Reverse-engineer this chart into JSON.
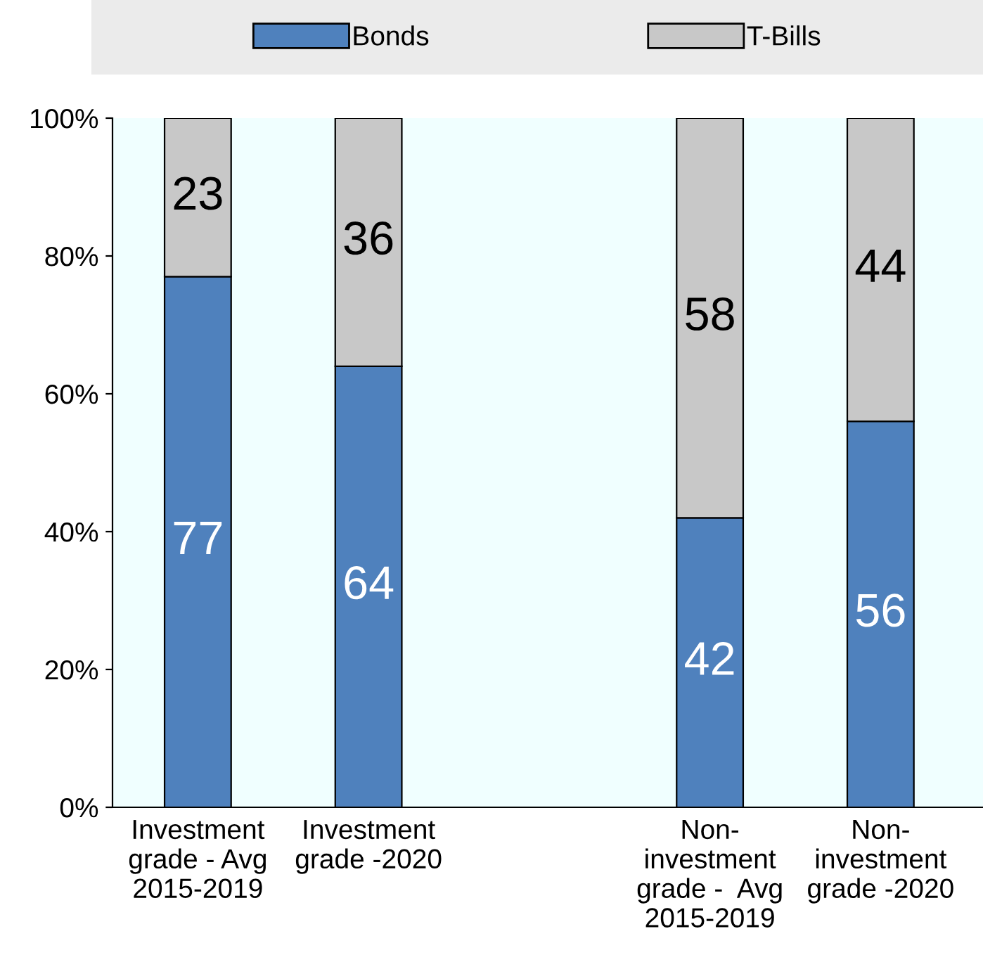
{
  "chart_data": {
    "type": "bar",
    "stacked": true,
    "categories": [
      "Investment\ngrade - Avg\n2015-2019",
      "Investment\ngrade -2020",
      null,
      "Non-\ninvestment\ngrade -  Avg\n2015-2019",
      "Non-\ninvestment\ngrade -2020"
    ],
    "series": [
      {
        "name": "Bonds",
        "color": "#4f81bd",
        "values": [
          77,
          64,
          null,
          42,
          56
        ]
      },
      {
        "name": "T-Bills",
        "color": "#c8c8c8",
        "values": [
          23,
          36,
          null,
          58,
          44
        ]
      }
    ],
    "ylim": [
      0,
      100
    ],
    "yticks": [
      {
        "value": 0,
        "label": "0%"
      },
      {
        "value": 20,
        "label": "20%"
      },
      {
        "value": 40,
        "label": "40%"
      },
      {
        "value": 60,
        "label": "60%"
      },
      {
        "value": 80,
        "label": "80%"
      },
      {
        "value": 100,
        "label": "100%"
      }
    ],
    "data_labels": true,
    "legend": "top",
    "grid": false
  }
}
